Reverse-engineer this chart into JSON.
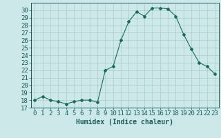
{
  "x": [
    0,
    1,
    2,
    3,
    4,
    5,
    6,
    7,
    8,
    9,
    10,
    11,
    12,
    13,
    14,
    15,
    16,
    17,
    18,
    19,
    20,
    21,
    22,
    23
  ],
  "y": [
    18.0,
    18.5,
    18.0,
    17.8,
    17.5,
    17.8,
    18.0,
    18.0,
    17.7,
    22.0,
    22.5,
    26.0,
    28.5,
    29.8,
    29.2,
    30.3,
    30.3,
    30.2,
    29.2,
    26.8,
    24.8,
    23.0,
    22.5,
    21.5
  ],
  "line_color": "#1a6b5a",
  "marker": "D",
  "marker_size": 2,
  "bg_color": "#cce8e8",
  "grid_color": "#aacccc",
  "xlabel": "Humidex (Indice chaleur)",
  "ylim": [
    17,
    31
  ],
  "xlim": [
    -0.5,
    23.5
  ],
  "yticks": [
    17,
    18,
    19,
    20,
    21,
    22,
    23,
    24,
    25,
    26,
    27,
    28,
    29,
    30
  ],
  "xticks": [
    0,
    1,
    2,
    3,
    4,
    5,
    6,
    7,
    8,
    9,
    10,
    11,
    12,
    13,
    14,
    15,
    16,
    17,
    18,
    19,
    20,
    21,
    22,
    23
  ],
  "font_color": "#1a5a5a",
  "font_size": 6.5
}
